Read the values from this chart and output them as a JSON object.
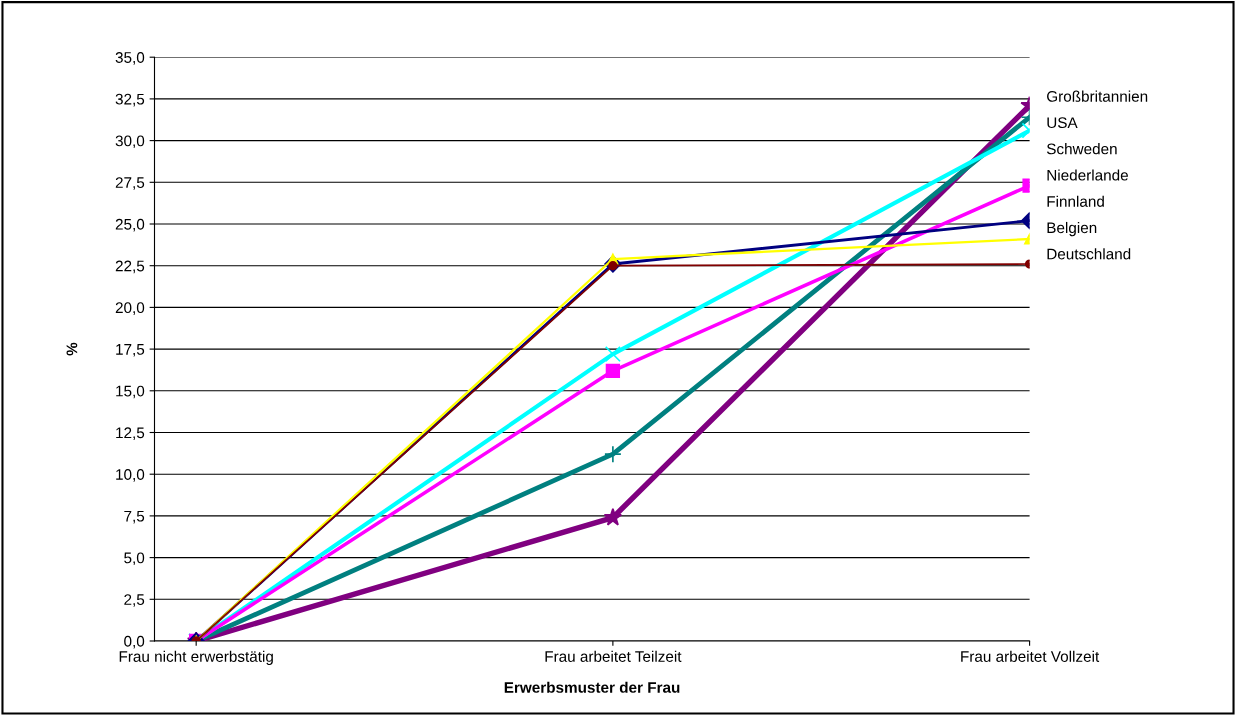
{
  "chart_data": {
    "type": "line",
    "xlabel": "Erwerbsmuster der Frau",
    "ylabel": "%",
    "categories": [
      "Frau nicht erwerbstätig",
      "Frau arbeitet Teilzeit",
      "Frau arbeitet Vollzeit"
    ],
    "series": [
      {
        "name": "Großbritannien",
        "color": "#800080",
        "marker": "star",
        "values": [
          0,
          7.4,
          32.1
        ]
      },
      {
        "name": "USA",
        "color": "#008080",
        "marker": "cross",
        "values": [
          0,
          11.2,
          31.4
        ]
      },
      {
        "name": "Schweden",
        "color": "#00ffff",
        "marker": "cross",
        "values": [
          0,
          17.2,
          30.6
        ]
      },
      {
        "name": "Niederlande",
        "color": "#ff00ff",
        "marker": "square",
        "values": [
          0,
          16.2,
          27.3
        ]
      },
      {
        "name": "Finnland",
        "color": "#000080",
        "marker": "diamond",
        "values": [
          0,
          22.6,
          25.2
        ]
      },
      {
        "name": "Belgien",
        "color": "#ffff00",
        "marker": "triangle",
        "values": [
          0,
          22.9,
          24.1
        ]
      },
      {
        "name": "Deutschland",
        "color": "#800000",
        "marker": "circle",
        "values": [
          0,
          22.5,
          22.6
        ]
      }
    ],
    "ylim": [
      0,
      35
    ],
    "yticks": [
      {
        "value": 0,
        "label": "0,0"
      },
      {
        "value": 2.5,
        "label": "2,5"
      },
      {
        "value": 5,
        "label": "5,0"
      },
      {
        "value": 7.5,
        "label": "7,5"
      },
      {
        "value": 10,
        "label": "10,0"
      },
      {
        "value": 12.5,
        "label": "12,5"
      },
      {
        "value": 15,
        "label": "15,0"
      },
      {
        "value": 17.5,
        "label": "17,5"
      },
      {
        "value": 20,
        "label": "20,0"
      },
      {
        "value": 22.5,
        "label": "22,5"
      },
      {
        "value": 25,
        "label": "25,0"
      },
      {
        "value": 27.5,
        "label": "27,5"
      },
      {
        "value": 30,
        "label": "30,0"
      },
      {
        "value": 32.5,
        "label": "32,5"
      },
      {
        "value": 35,
        "label": "35,0"
      }
    ],
    "grid": "y",
    "legend": false,
    "line_style": "solid"
  }
}
